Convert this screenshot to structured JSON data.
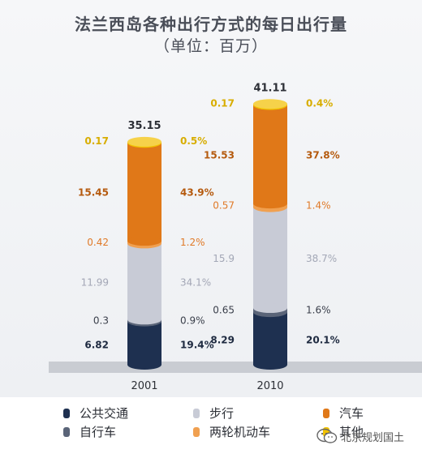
{
  "chart_data": {
    "type": "bar",
    "stacked": true,
    "title": "法兰西岛各种出行方式的每日出行量",
    "subtitle": "（单位：百万）",
    "categories": [
      "2001",
      "2010"
    ],
    "totals": [
      "35.15",
      "41.11"
    ],
    "series": [
      {
        "name": "公共交通",
        "color": "#1e3050",
        "label_color": "#1e2a40",
        "values": [
          6.82,
          8.29
        ],
        "value_labels": [
          "6.82",
          "8.29"
        ],
        "percent_labels": [
          "19.4%",
          "20.1%"
        ]
      },
      {
        "name": "自行车",
        "color": "#5a6478",
        "label_color": "#3a3f4a",
        "values": [
          0.3,
          0.65
        ],
        "value_labels": [
          "0.3",
          "0.65"
        ],
        "percent_labels": [
          "0.9%",
          "1.6%"
        ]
      },
      {
        "name": "步行",
        "color": "#c8cbd6",
        "label_color": "#a3a7b6",
        "values": [
          11.99,
          15.9
        ],
        "value_labels": [
          "11.99",
          "15.9"
        ],
        "percent_labels": [
          "34.1%",
          "38.7%"
        ]
      },
      {
        "name": "两轮机动车",
        "color": "#f0a050",
        "label_color": "#e07a28",
        "values": [
          0.42,
          0.57
        ],
        "value_labels": [
          "0.42",
          "0.57"
        ],
        "percent_labels": [
          "1.2%",
          "1.4%"
        ]
      },
      {
        "name": "汽车",
        "color": "#e07818",
        "label_color": "#b55a0e",
        "values": [
          15.45,
          15.53
        ],
        "value_labels": [
          "15.45",
          "15.53"
        ],
        "percent_labels": [
          "43.9%",
          "37.8%"
        ]
      },
      {
        "name": "其他",
        "color": "#f2c200",
        "label_color": "#d8ad00",
        "values": [
          0.17,
          0.17
        ],
        "value_labels": [
          "0.17",
          "0.17"
        ],
        "percent_labels": [
          "0.5%",
          "0.4%"
        ]
      }
    ]
  },
  "legend_order": [
    "公共交通",
    "步行",
    "汽车",
    "自行车",
    "两轮机动车",
    "其他"
  ],
  "watermark": {
    "text": "北京规划国土",
    "icon": "wechat-icon"
  }
}
